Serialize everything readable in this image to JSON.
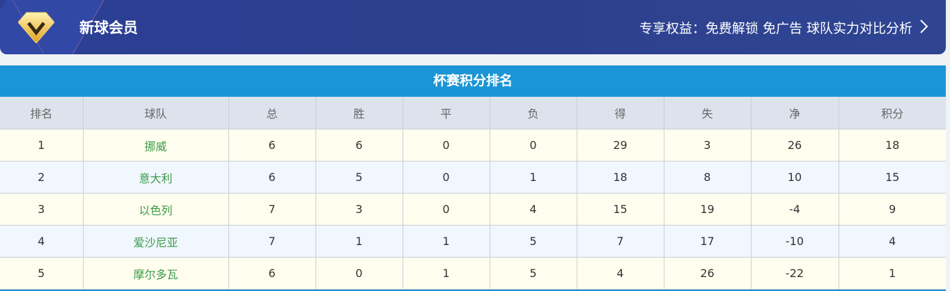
{
  "banner": {
    "title": "新球会员",
    "perks": "专享权益：免费解锁 免广告 球队实力对比分析",
    "icon": "diamond-v-icon",
    "arrow_icon": "chevron-right-icon"
  },
  "table": {
    "caption": "杯赛积分排名",
    "headers": [
      "排名",
      "球队",
      "总",
      "胜",
      "平",
      "负",
      "得",
      "失",
      "净",
      "积分"
    ],
    "rows": [
      [
        "1",
        "挪威",
        "6",
        "6",
        "0",
        "0",
        "29",
        "3",
        "26",
        "18"
      ],
      [
        "2",
        "意大利",
        "6",
        "5",
        "0",
        "1",
        "18",
        "8",
        "10",
        "15"
      ],
      [
        "3",
        "以色列",
        "7",
        "3",
        "0",
        "4",
        "15",
        "19",
        "-4",
        "9"
      ],
      [
        "4",
        "爱沙尼亚",
        "7",
        "1",
        "1",
        "5",
        "7",
        "17",
        "-10",
        "4"
      ],
      [
        "5",
        "摩尔多瓦",
        "6",
        "0",
        "1",
        "5",
        "4",
        "26",
        "-22",
        "1"
      ]
    ]
  },
  "colors": {
    "banner": "#2c3e8e",
    "caption": "#1b95d5",
    "header": "#dce3ed",
    "team": "#3d9a4a",
    "row_odd": "#fffeee",
    "row_even": "#f0f7fe"
  }
}
